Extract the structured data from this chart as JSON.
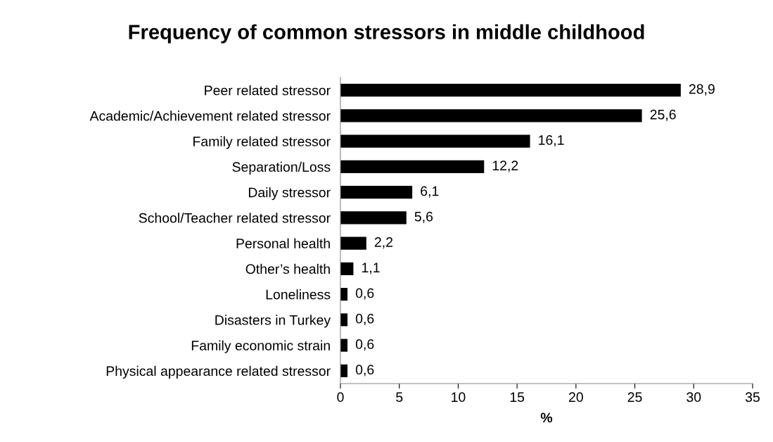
{
  "chart_data": {
    "type": "bar",
    "orientation": "horizontal",
    "title": "Frequency of common stressors in middle childhood",
    "xlabel": "%",
    "categories": [
      "Peer related stressor",
      "Academic/Achievement related stressor",
      "Family related stressor",
      "Separation/Loss",
      "Daily stressor",
      "School/Teacher related stressor",
      "Personal health",
      "Other’s health",
      "Loneliness",
      "Disasters in Turkey",
      "Family economic strain",
      "Physical appearance related stressor"
    ],
    "values": [
      28.9,
      25.6,
      16.1,
      12.2,
      6.1,
      5.6,
      2.2,
      1.1,
      0.6,
      0.6,
      0.6,
      0.6
    ],
    "value_labels": [
      "28,9",
      "25,6",
      "16,1",
      "12,2",
      "6,1",
      "5,6",
      "2,2",
      "1,1",
      "0,6",
      "0,6",
      "0,6",
      "0,6"
    ],
    "color": "#000000",
    "xlim": [
      0,
      35
    ],
    "xticks": [
      0,
      5,
      10,
      15,
      20,
      25,
      30,
      35
    ],
    "grid": false,
    "legend": false
  }
}
